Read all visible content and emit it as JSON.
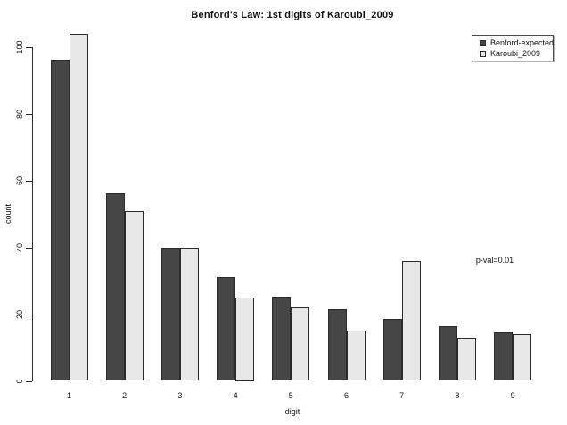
{
  "title": "Benford's Law: 1st digits of Karoubi_2009",
  "annotation": {
    "p_value_text": "p-val=0.01"
  },
  "chart_data": {
    "type": "bar",
    "title": "Benford's Law: 1st digits of Karoubi_2009",
    "xlabel": "digit",
    "ylabel": "count",
    "categories": [
      "1",
      "2",
      "3",
      "4",
      "5",
      "6",
      "7",
      "8",
      "9"
    ],
    "series": [
      {
        "name": "Benford-expected",
        "color": "#464646",
        "values": [
          96.3,
          56.3,
          40.0,
          31.0,
          25.3,
          21.4,
          18.6,
          16.4,
          14.6
        ]
      },
      {
        "name": "Karoubi_2009",
        "color": "#e8e8e8",
        "values": [
          104,
          51,
          40,
          25,
          22,
          15,
          36,
          13,
          14
        ]
      }
    ],
    "ylim": [
      0,
      100
    ],
    "yticks": [
      0,
      20,
      40,
      60,
      80,
      100
    ],
    "grid": false,
    "legend_position": "top-right",
    "bar_border_color": "#2b2b2b",
    "annotation": "p-val=0.01"
  }
}
